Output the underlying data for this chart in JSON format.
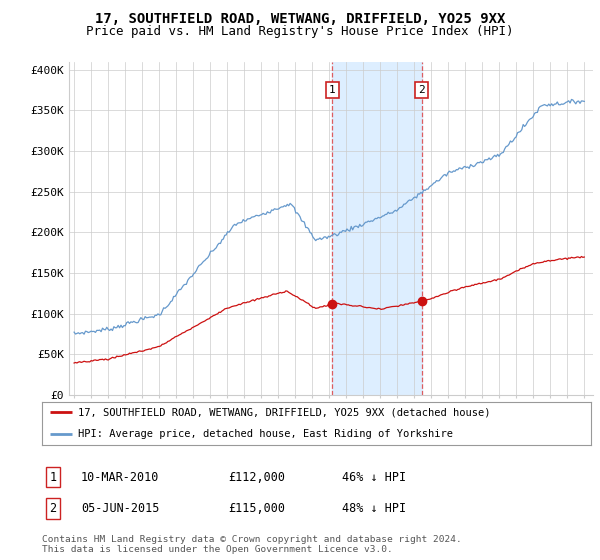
{
  "title": "17, SOUTHFIELD ROAD, WETWANG, DRIFFIELD, YO25 9XX",
  "subtitle": "Price paid vs. HM Land Registry's House Price Index (HPI)",
  "title_fontsize": 10,
  "subtitle_fontsize": 9,
  "ylabel_ticks": [
    "£0",
    "£50K",
    "£100K",
    "£150K",
    "£200K",
    "£250K",
    "£300K",
    "£350K",
    "£400K"
  ],
  "ytick_values": [
    0,
    50000,
    100000,
    150000,
    200000,
    250000,
    300000,
    350000,
    400000
  ],
  "ylim": [
    0,
    410000
  ],
  "xlim_start": 1994.7,
  "xlim_end": 2025.5,
  "hpi_color": "#6699cc",
  "price_color": "#cc1111",
  "marker1_date": 2010.19,
  "marker2_date": 2015.43,
  "marker1_price": 112000,
  "marker2_price": 115000,
  "legend_label1": "17, SOUTHFIELD ROAD, WETWANG, DRIFFIELD, YO25 9XX (detached house)",
  "legend_label2": "HPI: Average price, detached house, East Riding of Yorkshire",
  "note1_num": "1",
  "note1_date": "10-MAR-2010",
  "note1_price": "£112,000",
  "note1_pct": "46% ↓ HPI",
  "note2_num": "2",
  "note2_date": "05-JUN-2015",
  "note2_price": "£115,000",
  "note2_pct": "48% ↓ HPI",
  "footer": "Contains HM Land Registry data © Crown copyright and database right 2024.\nThis data is licensed under the Open Government Licence v3.0.",
  "background_color": "#ffffff",
  "vline_color": "#dd4444",
  "span_color": "#ddeeff"
}
